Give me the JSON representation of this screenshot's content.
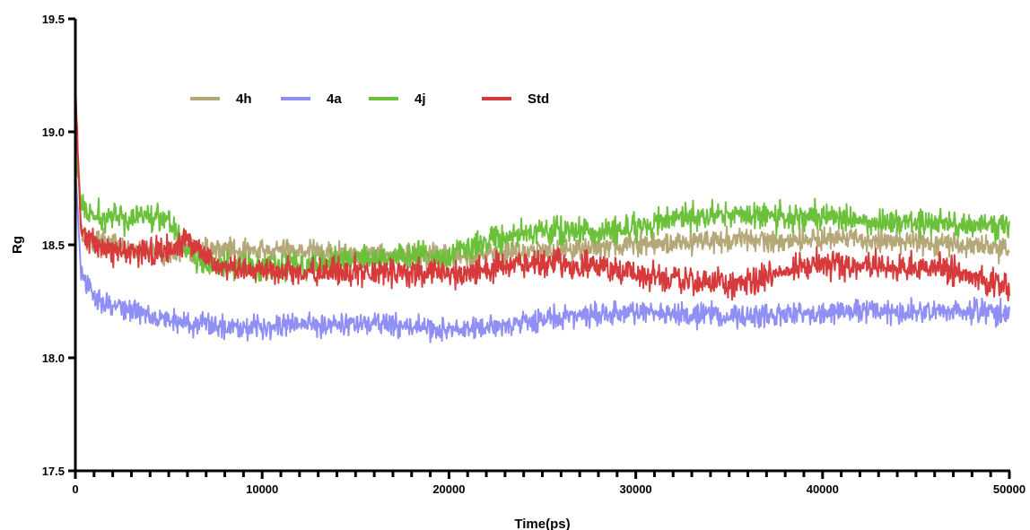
{
  "chart_data": {
    "type": "line",
    "title": "",
    "xlabel": "Time(ps)",
    "ylabel": "Rg",
    "xlim": [
      0,
      50000
    ],
    "ylim": [
      17.5,
      19.5
    ],
    "x_ticks": [
      0,
      10000,
      20000,
      30000,
      40000,
      50000
    ],
    "y_ticks": [
      "17.5",
      "18.0",
      "18.5",
      "19.0",
      "19.5"
    ],
    "grid": false,
    "legend_position": "top-left",
    "colors": {
      "4h": "#b5a878",
      "4a": "#8f8ff5",
      "4j": "#6cc13a",
      "Std": "#d63a3a"
    },
    "series": [
      {
        "name": "4h",
        "x": [
          0,
          300,
          600,
          1000,
          2000,
          3000,
          4000,
          5000,
          6000,
          7000,
          8000,
          10000,
          12000,
          14000,
          16000,
          18000,
          20000,
          22000,
          24000,
          26000,
          28000,
          30000,
          32000,
          34000,
          36000,
          38000,
          40000,
          42000,
          44000,
          46000,
          48000,
          50000
        ],
        "y": [
          19.12,
          18.58,
          18.52,
          18.52,
          18.5,
          18.47,
          18.47,
          18.47,
          18.47,
          18.48,
          18.48,
          18.47,
          18.48,
          18.46,
          18.46,
          18.45,
          18.44,
          18.46,
          18.47,
          18.48,
          18.49,
          18.5,
          18.51,
          18.52,
          18.52,
          18.52,
          18.53,
          18.52,
          18.52,
          18.51,
          18.5,
          18.48
        ]
      },
      {
        "name": "4a",
        "x": [
          0,
          300,
          600,
          1000,
          2000,
          3000,
          4000,
          5000,
          6000,
          7000,
          8000,
          10000,
          12000,
          14000,
          16000,
          18000,
          20000,
          22000,
          24000,
          26000,
          28000,
          30000,
          32000,
          34000,
          36000,
          38000,
          40000,
          42000,
          44000,
          46000,
          48000,
          50000
        ],
        "y": [
          18.85,
          18.37,
          18.32,
          18.27,
          18.23,
          18.21,
          18.19,
          18.17,
          18.15,
          18.15,
          18.14,
          18.14,
          18.15,
          18.15,
          18.15,
          18.14,
          18.12,
          18.13,
          18.16,
          18.18,
          18.19,
          18.2,
          18.2,
          18.19,
          18.18,
          18.19,
          18.2,
          18.21,
          18.2,
          18.2,
          18.2,
          18.2
        ]
      },
      {
        "name": "4j",
        "x": [
          0,
          300,
          600,
          1000,
          2000,
          3000,
          4000,
          5000,
          6000,
          7000,
          8000,
          10000,
          12000,
          14000,
          16000,
          18000,
          20000,
          22000,
          24000,
          26000,
          28000,
          30000,
          32000,
          34000,
          36000,
          38000,
          40000,
          42000,
          44000,
          46000,
          48000,
          50000
        ],
        "y": [
          18.9,
          18.7,
          18.64,
          18.62,
          18.62,
          18.62,
          18.63,
          18.62,
          18.48,
          18.4,
          18.4,
          18.4,
          18.42,
          18.43,
          18.44,
          18.45,
          18.45,
          18.52,
          18.55,
          18.56,
          18.56,
          18.57,
          18.62,
          18.63,
          18.63,
          18.62,
          18.63,
          18.61,
          18.6,
          18.6,
          18.59,
          18.58
        ]
      },
      {
        "name": "Std",
        "x": [
          0,
          300,
          600,
          1000,
          2000,
          3000,
          4000,
          5000,
          6000,
          7000,
          8000,
          10000,
          12000,
          14000,
          16000,
          18000,
          20000,
          22000,
          24000,
          26000,
          28000,
          30000,
          32000,
          34000,
          36000,
          38000,
          40000,
          42000,
          44000,
          46000,
          48000,
          50000
        ],
        "y": [
          19.2,
          18.55,
          18.53,
          18.5,
          18.48,
          18.47,
          18.47,
          18.47,
          18.52,
          18.45,
          18.4,
          18.38,
          18.38,
          18.38,
          18.38,
          18.38,
          18.37,
          18.39,
          18.42,
          18.42,
          18.41,
          18.36,
          18.35,
          18.34,
          18.33,
          18.38,
          18.42,
          18.41,
          18.4,
          18.4,
          18.36,
          18.32
        ]
      }
    ]
  }
}
